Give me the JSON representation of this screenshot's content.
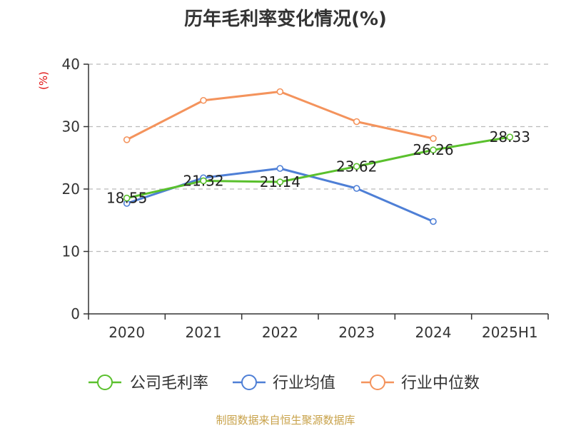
{
  "title": "历年毛利率变化情况(%)",
  "y_unit": "(%)",
  "source": "制图数据来自恒生聚源数据库",
  "colors": {
    "company": "#5ac02d",
    "industry_avg": "#4e7fd6",
    "industry_median": "#f4935c",
    "axis": "#333333",
    "grid": "#bbbbbb",
    "unit": "#e01010"
  },
  "chart_data": {
    "type": "line",
    "categories": [
      "2020",
      "2021",
      "2022",
      "2023",
      "2024",
      "2025H1"
    ],
    "ylim": [
      0,
      40
    ],
    "yticks": [
      "0",
      "10",
      "20",
      "30",
      "40"
    ],
    "grid": "dashed-horizontal",
    "legend_position": "bottom",
    "series": [
      {
        "name": "公司毛利率",
        "values": [
          18.55,
          21.32,
          21.14,
          23.62,
          26.26,
          28.33
        ],
        "labels": [
          "18.55",
          "21.32",
          "21.14",
          "23.62",
          "26.26",
          "28.33"
        ]
      },
      {
        "name": "行业均值",
        "values": [
          17.7,
          21.8,
          23.3,
          20.1,
          14.8,
          null
        ]
      },
      {
        "name": "行业中位数",
        "values": [
          27.9,
          34.2,
          35.6,
          30.8,
          28.1,
          null
        ]
      }
    ]
  }
}
